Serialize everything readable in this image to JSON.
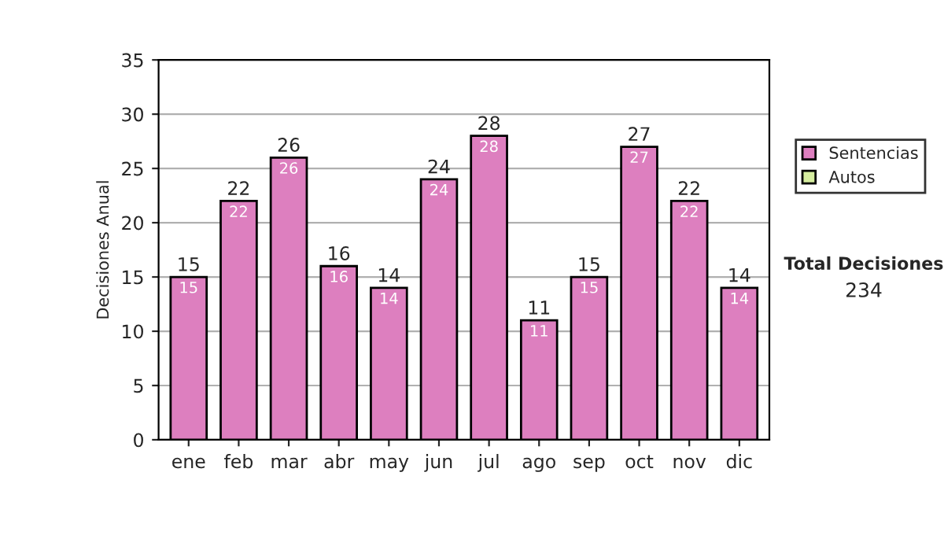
{
  "chart_data": {
    "type": "bar",
    "stacked": true,
    "ylabel": "Decisiones Anual",
    "categories": [
      "ene",
      "feb",
      "mar",
      "abr",
      "may",
      "jun",
      "jul",
      "ago",
      "sep",
      "oct",
      "nov",
      "dic"
    ],
    "series": [
      {
        "name": "Sentencias",
        "color": "#dd7fbf",
        "values": [
          15,
          22,
          26,
          16,
          14,
          24,
          28,
          11,
          15,
          27,
          22,
          14
        ],
        "value_labels": [
          "15",
          "22",
          "26",
          "16",
          "14",
          "24",
          "28",
          "11",
          "15",
          "27",
          "22",
          "14"
        ]
      },
      {
        "name": "Autos",
        "color": "#d6eea0",
        "values": [
          null,
          null,
          null,
          null,
          null,
          null,
          null,
          null,
          null,
          null,
          null,
          null
        ]
      }
    ],
    "totals": [
      "15",
      "22",
      "26",
      "16",
      "14",
      "24",
      "28",
      "11",
      "15",
      "27",
      "22",
      "14"
    ],
    "ylim": [
      0,
      35
    ],
    "yticks": [
      0,
      5,
      10,
      15,
      20,
      25,
      30,
      35
    ],
    "grid": "y",
    "legend": "right",
    "annotations": [
      "Total Decisiones",
      "234"
    ]
  }
}
